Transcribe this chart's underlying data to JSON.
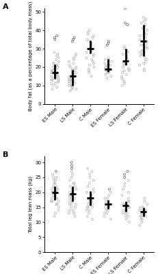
{
  "panel_A": {
    "ylabel": "Body fat (as a percentage of total body mass)",
    "ylim": [
      0,
      52
    ],
    "yticks": [
      0,
      10,
      20,
      30,
      40,
      50
    ],
    "groups": [
      "ES Male",
      "LS Male",
      "C Male",
      "ES Female",
      "LS Female",
      "C Female"
    ],
    "means": [
      17.0,
      15.0,
      30.0,
      19.0,
      23.5,
      34.0
    ],
    "ci_low": [
      13.5,
      10.0,
      27.5,
      17.5,
      21.0,
      26.0
    ],
    "ci_high": [
      21.5,
      18.5,
      34.5,
      24.5,
      30.0,
      43.0
    ],
    "outlier_clusters": [
      [
        35,
        36,
        37
      ],
      [
        34,
        35,
        36
      ],
      [],
      [
        32,
        33,
        34
      ],
      [
        43,
        44,
        52
      ],
      []
    ],
    "data": [
      [
        8,
        9,
        10,
        11,
        11,
        12,
        12,
        13,
        13,
        13,
        14,
        14,
        14,
        15,
        15,
        15,
        16,
        16,
        16,
        17,
        17,
        17,
        18,
        18,
        18,
        19,
        19,
        20,
        20,
        21,
        21,
        22,
        22,
        23,
        24,
        25,
        26,
        27,
        28
      ],
      [
        7,
        8,
        8,
        9,
        9,
        10,
        10,
        10,
        11,
        11,
        12,
        12,
        12,
        13,
        13,
        13,
        14,
        14,
        14,
        15,
        15,
        15,
        16,
        16,
        17,
        17,
        17,
        18,
        18,
        18,
        19,
        19,
        20,
        20,
        21,
        22,
        23,
        24,
        25,
        26,
        27
      ],
      [
        15,
        17,
        18,
        19,
        20,
        21,
        22,
        23,
        24,
        25,
        26,
        27,
        28,
        29,
        30,
        31,
        32,
        33,
        34,
        35,
        36,
        37,
        38,
        39,
        40
      ],
      [
        14,
        15,
        16,
        17,
        17,
        18,
        18,
        19,
        19,
        20,
        20,
        21,
        21,
        22,
        23,
        24,
        25
      ],
      [
        10,
        11,
        12,
        13,
        14,
        15,
        16,
        17,
        18,
        18,
        19,
        19,
        20,
        21,
        22,
        22,
        23,
        23,
        24,
        25,
        26,
        27,
        28,
        29,
        30,
        31
      ],
      [
        18,
        19,
        21,
        22,
        23,
        24,
        25,
        26,
        27,
        27,
        28,
        28,
        29,
        29,
        30,
        31,
        31,
        32,
        32,
        33,
        34,
        34,
        35,
        36,
        37,
        38,
        39,
        40,
        41,
        42,
        43,
        44,
        45,
        46,
        47
      ]
    ],
    "label": "A"
  },
  "panel_B": {
    "ylabel": "Total leg lean mass (kg)",
    "ylim": [
      0,
      32
    ],
    "yticks": [
      0,
      5,
      10,
      15,
      20,
      25,
      30
    ],
    "groups": [
      "ES Male",
      "LS Male",
      "C Male",
      "ES Female",
      "LS Female",
      "C Female"
    ],
    "means": [
      20.0,
      19.5,
      18.0,
      16.0,
      15.5,
      13.5
    ],
    "ci_low": [
      17.5,
      17.0,
      15.5,
      14.5,
      13.5,
      12.0
    ],
    "ci_high": [
      22.0,
      22.0,
      20.5,
      17.5,
      17.0,
      15.0
    ],
    "outlier_clusters": [
      [
        27
      ],
      [
        28,
        29,
        30
      ],
      [],
      [
        21
      ],
      [
        25,
        26,
        27
      ],
      []
    ],
    "data": [
      [
        12,
        13,
        14,
        15,
        16,
        16,
        17,
        17,
        17,
        18,
        18,
        18,
        19,
        19,
        19,
        20,
        20,
        20,
        21,
        21,
        21,
        22,
        22,
        23,
        23,
        24,
        24,
        25,
        25,
        26
      ],
      [
        12,
        13,
        13,
        14,
        14,
        15,
        15,
        16,
        16,
        16,
        17,
        17,
        18,
        18,
        18,
        19,
        19,
        19,
        20,
        20,
        20,
        21,
        21,
        22,
        22,
        23,
        23,
        24,
        25,
        26,
        27
      ],
      [
        11,
        12,
        13,
        14,
        14,
        15,
        15,
        15,
        16,
        16,
        17,
        17,
        17,
        18,
        18,
        18,
        19,
        19,
        20,
        20,
        21,
        22,
        23,
        24,
        25,
        26,
        27,
        28
      ],
      [
        11,
        12,
        13,
        13,
        14,
        14,
        15,
        15,
        15,
        16,
        16,
        16,
        17,
        17,
        18,
        18,
        19,
        20
      ],
      [
        10,
        11,
        12,
        12,
        13,
        13,
        13,
        14,
        14,
        14,
        15,
        15,
        15,
        16,
        16,
        16,
        17,
        17,
        18,
        19,
        20,
        21,
        22,
        23,
        24
      ],
      [
        9,
        10,
        11,
        11,
        12,
        12,
        12,
        13,
        13,
        13,
        14,
        14,
        14,
        15,
        15,
        16,
        17,
        18
      ]
    ],
    "label": "B"
  },
  "dot_color": "#b0b0b0",
  "mean_color": "#000000",
  "outlier_dot_color": "#606060",
  "background": "#ffffff"
}
